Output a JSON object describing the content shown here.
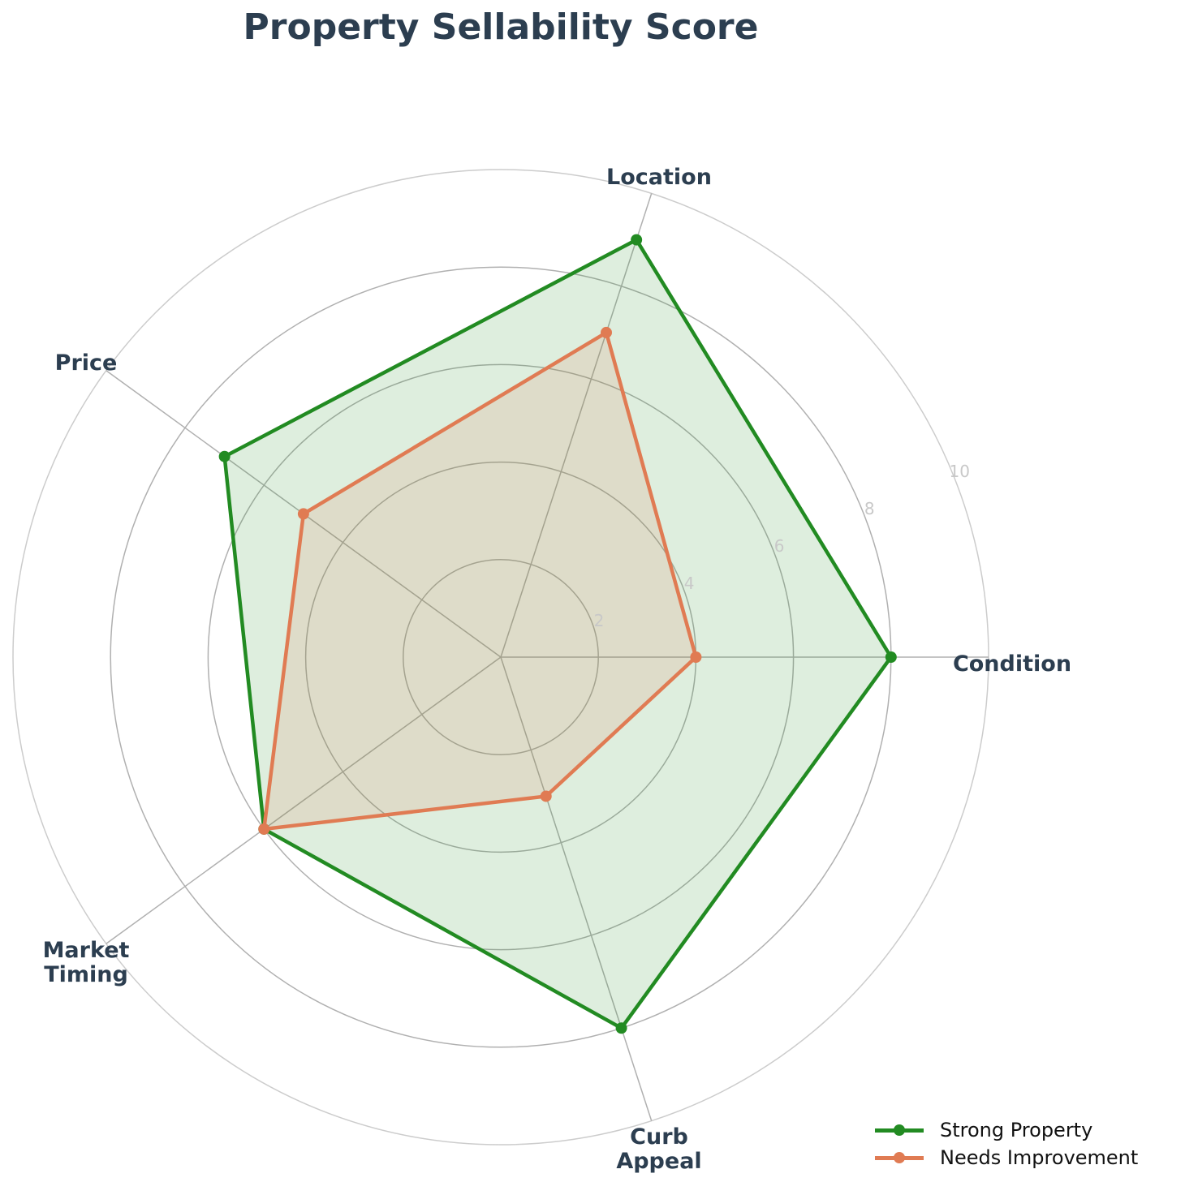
{
  "chart_data": {
    "type": "radar",
    "title": "Property Sellability Score",
    "categories": [
      "Condition",
      "Location",
      "Price",
      "Market Timing",
      "Curb Appeal"
    ],
    "category_labels": [
      [
        "Condition"
      ],
      [
        "Location"
      ],
      [
        "Price"
      ],
      [
        "Market",
        "Timing"
      ],
      [
        "Curb",
        "Appeal"
      ]
    ],
    "series": [
      {
        "name": "Strong Property",
        "values": [
          8,
          9,
          7,
          6,
          8
        ],
        "color": "#228b22",
        "fill": "#228b22",
        "fill_opacity": 0.15
      },
      {
        "name": "Needs Improvement",
        "values": [
          4,
          7,
          5,
          6,
          3
        ],
        "color": "#e07b53",
        "fill": "#e07b53",
        "fill_opacity": 0.15
      }
    ],
    "rlim": [
      0,
      10
    ],
    "rticks": [
      2,
      4,
      6,
      8,
      10
    ],
    "grid": true,
    "legend_position": "lower right"
  },
  "legend": {
    "items": [
      {
        "label": "Strong Property",
        "color": "#228b22"
      },
      {
        "label": "Needs Improvement",
        "color": "#e07b53"
      }
    ]
  }
}
